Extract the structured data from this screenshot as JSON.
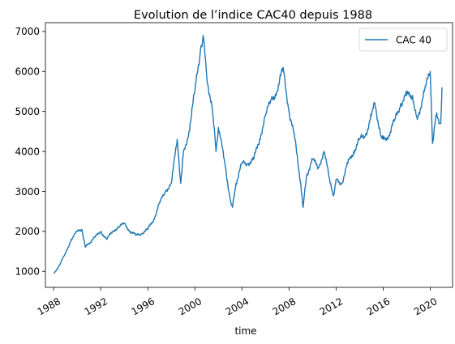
{
  "chart_data": {
    "type": "line",
    "title": "Evolution de l’indice CAC40 depuis 1988",
    "xlabel": "time",
    "ylabel": "",
    "x_ticks": [
      "1988",
      "1992",
      "1996",
      "2000",
      "2004",
      "2008",
      "2012",
      "2016",
      "2020"
    ],
    "y_ticks": [
      "1000",
      "2000",
      "3000",
      "4000",
      "5000",
      "6000",
      "7000"
    ],
    "xlim": [
      1987.3,
      2021.9
    ],
    "ylim": [
      600,
      7220
    ],
    "grid": false,
    "legend_placement": "top-right",
    "colors": {
      "series": "#1f77b4"
    },
    "series": [
      {
        "name": "CAC 40",
        "x": [
          1988.0,
          1988.5,
          1989.0,
          1989.5,
          1990.0,
          1990.4,
          1990.7,
          1991.0,
          1991.5,
          1992.0,
          1992.5,
          1993.0,
          1993.5,
          1994.0,
          1994.5,
          1995.0,
          1995.5,
          1996.0,
          1996.5,
          1997.0,
          1997.5,
          1998.0,
          1998.5,
          1998.8,
          1999.0,
          1999.5,
          2000.0,
          2000.5,
          2000.7,
          2001.0,
          2001.5,
          2001.8,
          2002.0,
          2002.5,
          2003.0,
          2003.2,
          2003.5,
          2004.0,
          2004.5,
          2005.0,
          2005.5,
          2006.0,
          2006.5,
          2007.0,
          2007.5,
          2008.0,
          2008.5,
          2009.0,
          2009.2,
          2009.5,
          2010.0,
          2010.5,
          2011.0,
          2011.5,
          2011.8,
          2012.0,
          2012.5,
          2013.0,
          2013.5,
          2014.0,
          2014.5,
          2015.0,
          2015.3,
          2015.8,
          2016.0,
          2016.5,
          2017.0,
          2017.5,
          2018.0,
          2018.5,
          2018.9,
          2019.0,
          2019.5,
          2020.0,
          2020.2,
          2020.5,
          2020.9,
          2021.0
        ],
        "values": [
          950,
          1150,
          1450,
          1800,
          2000,
          2050,
          1600,
          1700,
          1850,
          2000,
          1800,
          2000,
          2100,
          2200,
          2000,
          1900,
          1950,
          2050,
          2300,
          2700,
          3000,
          3200,
          4300,
          3200,
          3900,
          4500,
          5500,
          6600,
          6900,
          5900,
          5000,
          4000,
          4600,
          3800,
          2800,
          2600,
          3200,
          3700,
          3700,
          3800,
          4300,
          4900,
          5300,
          5500,
          6100,
          5000,
          4300,
          3200,
          2600,
          3400,
          3800,
          3600,
          4000,
          3200,
          2900,
          3300,
          3200,
          3700,
          4000,
          4300,
          4400,
          4900,
          5200,
          4400,
          4300,
          4400,
          4800,
          5200,
          5400,
          5400,
          4800,
          4900,
          5500,
          6000,
          4200,
          4900,
          4700,
          5600
        ]
      }
    ]
  }
}
